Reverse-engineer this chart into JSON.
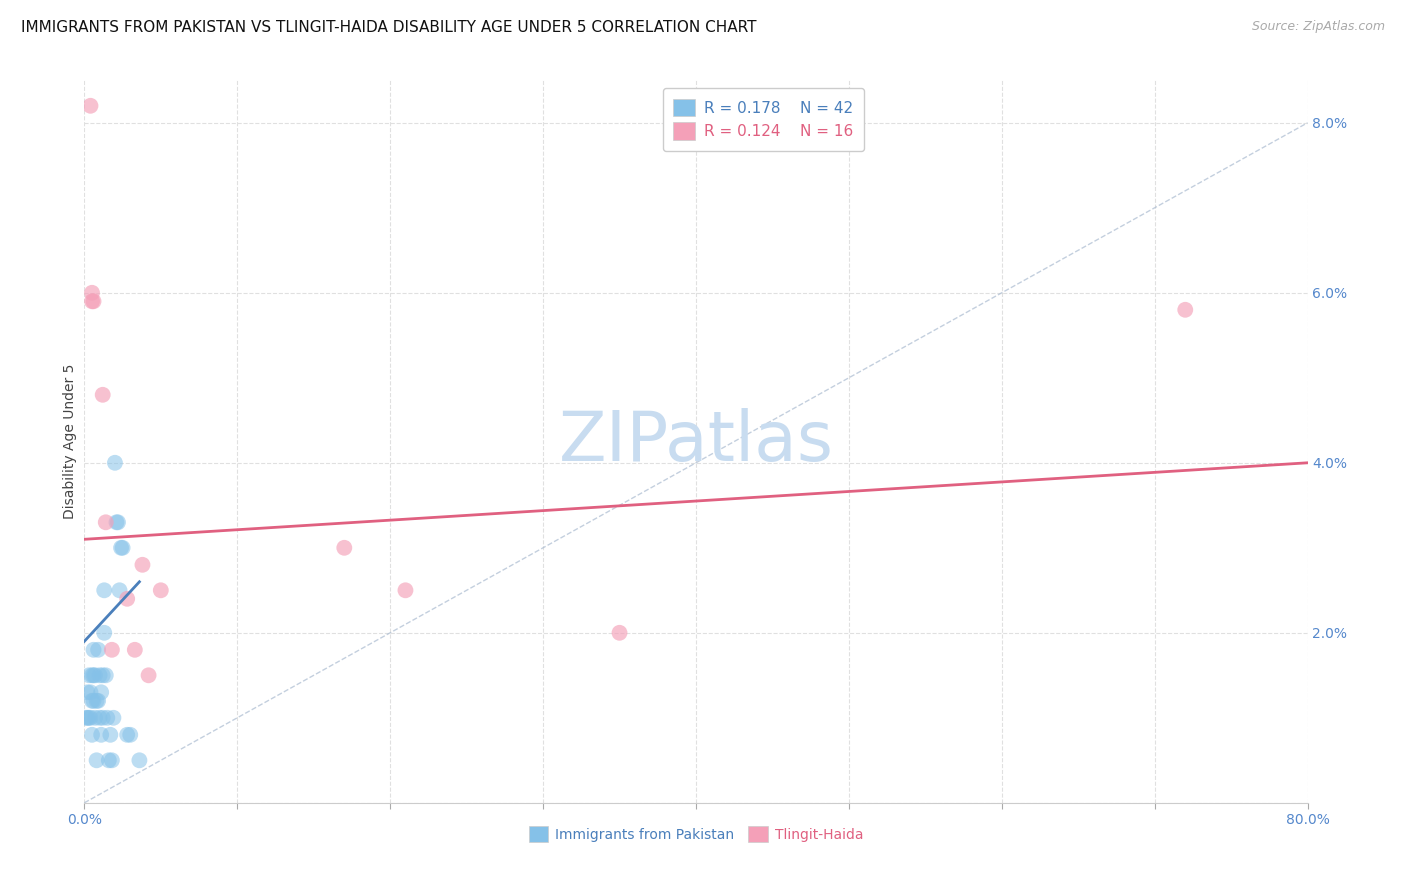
{
  "title": "IMMIGRANTS FROM PAKISTAN VS TLINGIT-HAIDA DISABILITY AGE UNDER 5 CORRELATION CHART",
  "source": "Source: ZipAtlas.com",
  "ylabel": "Disability Age Under 5",
  "xmin": 0.0,
  "xmax": 0.8,
  "ymin": 0.0,
  "ymax": 0.085,
  "xtick_positions": [
    0.0,
    0.1,
    0.2,
    0.3,
    0.4,
    0.5,
    0.6,
    0.7,
    0.8
  ],
  "xtick_labels_edge": {
    "0": "0.0%",
    "8": "80.0%"
  },
  "yticks": [
    0.0,
    0.02,
    0.04,
    0.06,
    0.08
  ],
  "ytick_labels": [
    "",
    "2.0%",
    "4.0%",
    "6.0%",
    "8.0%"
  ],
  "blue_scatter_x": [
    0.001,
    0.002,
    0.002,
    0.003,
    0.003,
    0.004,
    0.004,
    0.005,
    0.005,
    0.005,
    0.006,
    0.006,
    0.006,
    0.007,
    0.007,
    0.008,
    0.008,
    0.009,
    0.009,
    0.01,
    0.01,
    0.011,
    0.011,
    0.012,
    0.012,
    0.013,
    0.013,
    0.014,
    0.015,
    0.016,
    0.017,
    0.018,
    0.019,
    0.02,
    0.021,
    0.022,
    0.023,
    0.024,
    0.025,
    0.028,
    0.03,
    0.036
  ],
  "blue_scatter_y": [
    0.01,
    0.01,
    0.013,
    0.01,
    0.015,
    0.01,
    0.013,
    0.008,
    0.012,
    0.015,
    0.012,
    0.015,
    0.018,
    0.01,
    0.015,
    0.005,
    0.012,
    0.012,
    0.018,
    0.01,
    0.015,
    0.008,
    0.013,
    0.01,
    0.015,
    0.02,
    0.025,
    0.015,
    0.01,
    0.005,
    0.008,
    0.005,
    0.01,
    0.04,
    0.033,
    0.033,
    0.025,
    0.03,
    0.03,
    0.008,
    0.008,
    0.005
  ],
  "pink_scatter_x": [
    0.004,
    0.005,
    0.005,
    0.006,
    0.012,
    0.014,
    0.018,
    0.028,
    0.033,
    0.038,
    0.042,
    0.05,
    0.17,
    0.21,
    0.35,
    0.72
  ],
  "pink_scatter_y": [
    0.082,
    0.059,
    0.06,
    0.059,
    0.048,
    0.033,
    0.018,
    0.024,
    0.018,
    0.028,
    0.015,
    0.025,
    0.03,
    0.025,
    0.02,
    0.058
  ],
  "blue_line_x": [
    0.0,
    0.036
  ],
  "blue_line_y": [
    0.019,
    0.026
  ],
  "pink_line_x": [
    0.0,
    0.8
  ],
  "pink_line_y": [
    0.031,
    0.04
  ],
  "diag_line_x": [
    0.0,
    0.8
  ],
  "diag_line_y": [
    0.0,
    0.08
  ],
  "legend_R_blue": "R = 0.178",
  "legend_N_blue": "N = 42",
  "legend_R_pink": "R = 0.124",
  "legend_N_pink": "N = 16",
  "legend_label_blue": "Immigrants from Pakistan",
  "legend_label_pink": "Tlingit-Haida",
  "blue_color": "#85C1E8",
  "pink_color": "#F4A0B8",
  "blue_line_color": "#4A7FBB",
  "pink_line_color": "#E06080",
  "tick_color": "#5588CC",
  "watermark_color": "#C8DCF0",
  "background_color": "#FFFFFF",
  "grid_color": "#E0E0E0",
  "title_fontsize": 11,
  "axis_label_fontsize": 10,
  "tick_fontsize": 10,
  "legend_fontsize": 11,
  "source_fontsize": 9
}
